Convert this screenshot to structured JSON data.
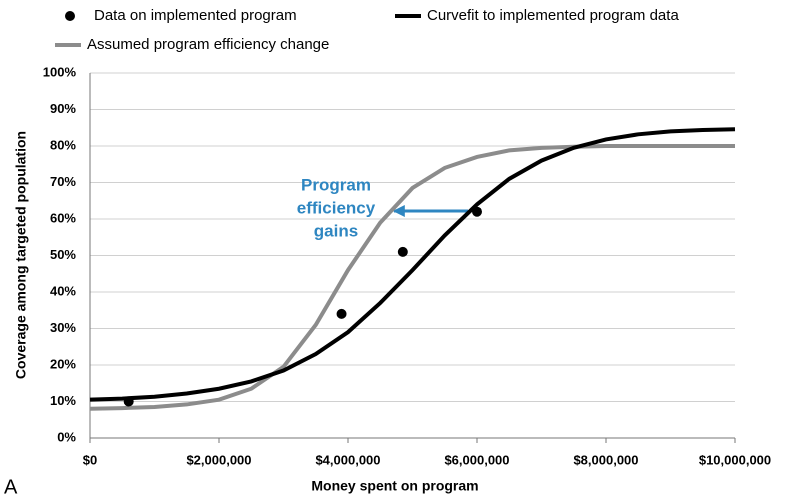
{
  "chart_data": {
    "type": "line",
    "x_label": "Money spent on program",
    "y_label": "Coverage among targeted population",
    "panel_label": "A",
    "annotation": [
      "Program",
      "efficiency",
      "gains"
    ],
    "annotation_color": "#2e86c1",
    "xlim": [
      0,
      10000000
    ],
    "ylim": [
      0,
      100
    ],
    "xticks": [
      {
        "value": 0,
        "label": "$0"
      },
      {
        "value": 2000000,
        "label": "$2,000,000"
      },
      {
        "value": 4000000,
        "label": "$4,000,000"
      },
      {
        "value": 6000000,
        "label": "$6,000,000"
      },
      {
        "value": 8000000,
        "label": "$8,000,000"
      },
      {
        "value": 10000000,
        "label": "$10,000,000"
      }
    ],
    "yticks": [
      {
        "value": 0,
        "label": "0%"
      },
      {
        "value": 10,
        "label": "10%"
      },
      {
        "value": 20,
        "label": "20%"
      },
      {
        "value": 30,
        "label": "30%"
      },
      {
        "value": 40,
        "label": "40%"
      },
      {
        "value": 50,
        "label": "50%"
      },
      {
        "value": 60,
        "label": "60%"
      },
      {
        "value": 70,
        "label": "70%"
      },
      {
        "value": 80,
        "label": "80%"
      },
      {
        "value": 90,
        "label": "90%"
      },
      {
        "value": 100,
        "label": "100%"
      }
    ],
    "grid": true,
    "series": [
      {
        "name": "Data on implemented program",
        "type": "scatter",
        "color": "#000000",
        "x": [
          600000,
          3900000,
          4850000,
          6000000
        ],
        "values": [
          10,
          34,
          51,
          62
        ]
      },
      {
        "name": "Curvefit to implemented program data",
        "type": "line",
        "color": "#000000",
        "x": [
          0,
          500000,
          1000000,
          1500000,
          2000000,
          2500000,
          3000000,
          3500000,
          4000000,
          4500000,
          5000000,
          5500000,
          6000000,
          6500000,
          7000000,
          7500000,
          8000000,
          8500000,
          9000000,
          9500000,
          10000000
        ],
        "values": [
          10.5,
          10.8,
          11.3,
          12.2,
          13.5,
          15.5,
          18.5,
          23,
          29,
          37,
          46,
          55.5,
          64,
          71,
          76,
          79.5,
          81.8,
          83.2,
          84,
          84.4,
          84.6
        ]
      },
      {
        "name": "Assumed program efficiency change",
        "type": "line",
        "color": "#8c8c8c",
        "x": [
          0,
          500000,
          1000000,
          1500000,
          2000000,
          2500000,
          3000000,
          3500000,
          4000000,
          4500000,
          5000000,
          5500000,
          6000000,
          6500000,
          7000000,
          7500000,
          8000000,
          8500000,
          9000000,
          9500000,
          10000000
        ],
        "values": [
          8,
          8.2,
          8.5,
          9.2,
          10.5,
          13.5,
          19.5,
          31,
          46,
          59,
          68.5,
          74,
          77,
          78.8,
          79.5,
          79.8,
          80,
          80,
          80,
          80,
          80
        ]
      }
    ]
  }
}
